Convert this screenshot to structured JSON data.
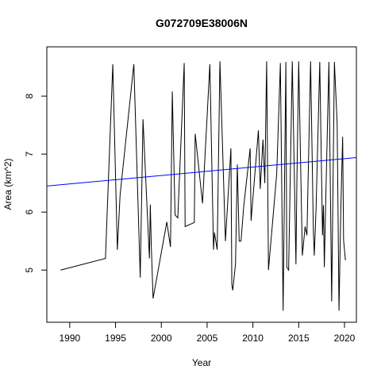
{
  "chart_data": {
    "type": "line",
    "title": "G072709E38006N",
    "xlabel": "Year",
    "ylabel": "Area (km^2)",
    "xlim": [
      1987.5,
      2021.3
    ],
    "ylim": [
      4.1,
      8.85
    ],
    "x_ticks": [
      1990,
      1995,
      2000,
      2005,
      2010,
      2015,
      2020
    ],
    "y_ticks": [
      5,
      6,
      7,
      8
    ],
    "grid": false,
    "legend": "none",
    "series": [
      {
        "color": "#000000",
        "x": [
          1989.0,
          1993.9,
          1994.7,
          1995.2,
          1995.5,
          1997.0,
          1997.7,
          1998.0,
          1998.7,
          1998.8,
          1998.9,
          1999.1,
          2000.6,
          2001.0,
          2001.2,
          2001.5,
          2001.8,
          2002.5,
          2002.6,
          2003.6,
          2003.7,
          2004.5,
          2005.3,
          2005.7,
          2005.8,
          2006.1,
          2006.4,
          2007.0,
          2007.6,
          2007.7,
          2007.8,
          2008.1,
          2008.3,
          2008.5,
          2008.7,
          2009.0,
          2009.7,
          2009.8,
          2010.6,
          2010.8,
          2011.1,
          2011.3,
          2011.5,
          2011.7,
          2012.6,
          2013.0,
          2013.3,
          2013.6,
          2013.7,
          2013.9,
          2014.3,
          2014.7,
          2014.8,
          2015.0,
          2015.4,
          2015.7,
          2015.9,
          2016.3,
          2016.6,
          2016.7,
          2016.9,
          2017.3,
          2017.6,
          2017.7,
          2017.8,
          2017.9,
          2018.3,
          2018.6,
          2018.9,
          2019.2,
          2019.4,
          2019.6,
          2019.8,
          2019.9,
          2020.1
        ],
        "y": [
          5.0,
          5.2,
          8.55,
          5.35,
          6.3,
          8.55,
          4.87,
          7.6,
          5.2,
          6.13,
          5.45,
          4.51,
          5.83,
          5.4,
          8.08,
          5.95,
          5.9,
          8.57,
          5.75,
          5.82,
          7.35,
          6.15,
          8.55,
          5.35,
          5.65,
          5.35,
          8.6,
          5.5,
          7.1,
          4.75,
          4.65,
          5.1,
          6.82,
          5.5,
          5.5,
          6.1,
          7.1,
          5.85,
          7.41,
          6.4,
          7.25,
          6.5,
          8.6,
          5.0,
          6.66,
          8.57,
          4.3,
          8.59,
          5.05,
          5.0,
          8.6,
          5.1,
          6.49,
          8.6,
          5.25,
          5.75,
          5.6,
          8.6,
          5.7,
          5.25,
          6.07,
          8.59,
          5.6,
          6.12,
          5.05,
          5.84,
          8.59,
          4.46,
          8.59,
          7.52,
          4.3,
          6.06,
          7.3,
          5.52,
          5.17
        ]
      },
      {
        "color": "#0000ff",
        "x": [
          1987.5,
          2021.3
        ],
        "y": [
          6.45,
          6.94
        ]
      }
    ]
  }
}
